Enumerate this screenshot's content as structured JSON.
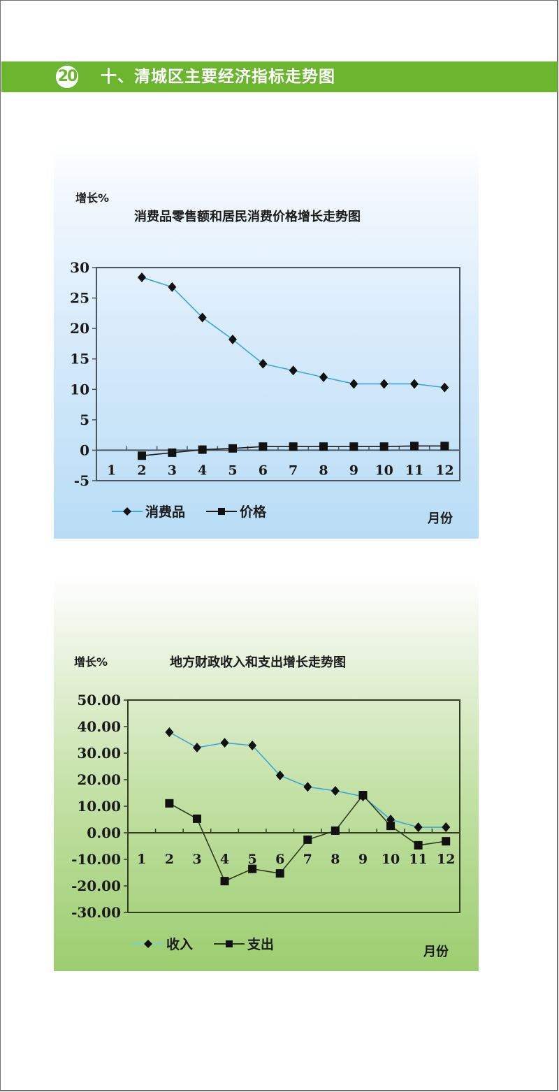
{
  "header": {
    "badge_number": "20",
    "title": "十、清城区主要经济指标走势图",
    "bar_color": "#6bb52f"
  },
  "chart_data": [
    {
      "type": "line",
      "title": "消费品零售额和居民消费价格增长走势图",
      "ylabel": "增长%",
      "xlabel": "月份",
      "x": [
        1,
        2,
        3,
        4,
        5,
        6,
        7,
        8,
        9,
        10,
        11,
        12
      ],
      "x_tick_labels": [
        "1",
        "2",
        "3",
        "4",
        "5",
        "6",
        "7",
        "8",
        "9",
        "10",
        "11",
        "12"
      ],
      "y_tick_labels": [
        "30",
        "25",
        "20",
        "15",
        "10",
        "5",
        "0",
        "-5"
      ],
      "ylim": [
        -5,
        30
      ],
      "y_step": 5,
      "grid": false,
      "legend_position": "bottom",
      "series": [
        {
          "name": "消费品",
          "marker": "diamond",
          "line_color": "#3aa6dd",
          "marker_color": "#111111",
          "values": [
            null,
            28.4,
            26.8,
            21.8,
            18.2,
            14.2,
            13.1,
            12.0,
            10.9,
            10.9,
            10.9,
            10.3
          ]
        },
        {
          "name": "价格",
          "marker": "square",
          "line_color": "#1a1a1a",
          "marker_color": "#111111",
          "values": [
            null,
            -0.9,
            -0.4,
            0.1,
            0.3,
            0.6,
            0.6,
            0.6,
            0.6,
            0.6,
            0.7,
            0.7
          ]
        }
      ]
    },
    {
      "type": "line",
      "title": "地方财政收入和支出增长走势图",
      "ylabel": "增长%",
      "xlabel": "月份",
      "x": [
        1,
        2,
        3,
        4,
        5,
        6,
        7,
        8,
        9,
        10,
        11,
        12
      ],
      "x_tick_labels": [
        "1",
        "2",
        "3",
        "4",
        "5",
        "6",
        "7",
        "8",
        "9",
        "10",
        "11",
        "12"
      ],
      "y_tick_labels": [
        "50.00",
        "40.00",
        "30.00",
        "20.00",
        "10.00",
        "0.00",
        "-10.00",
        "-20.00",
        "-30.00"
      ],
      "ylim": [
        -30,
        50
      ],
      "y_step": 10,
      "grid": false,
      "legend_position": "bottom",
      "series": [
        {
          "name": "收入",
          "marker": "diamond",
          "line_color": "#3aa6dd",
          "marker_color": "#111111",
          "values": [
            null,
            37.9,
            32.1,
            33.9,
            32.9,
            21.6,
            17.3,
            15.8,
            13.7,
            5.0,
            2.1,
            2.1
          ]
        },
        {
          "name": "支出",
          "marker": "square",
          "line_color": "#2b3a1a",
          "marker_color": "#111111",
          "values": [
            null,
            11.1,
            5.3,
            -18.2,
            -13.6,
            -15.3,
            -2.6,
            0.8,
            14.2,
            2.6,
            -4.7,
            -3.2
          ]
        }
      ]
    }
  ]
}
